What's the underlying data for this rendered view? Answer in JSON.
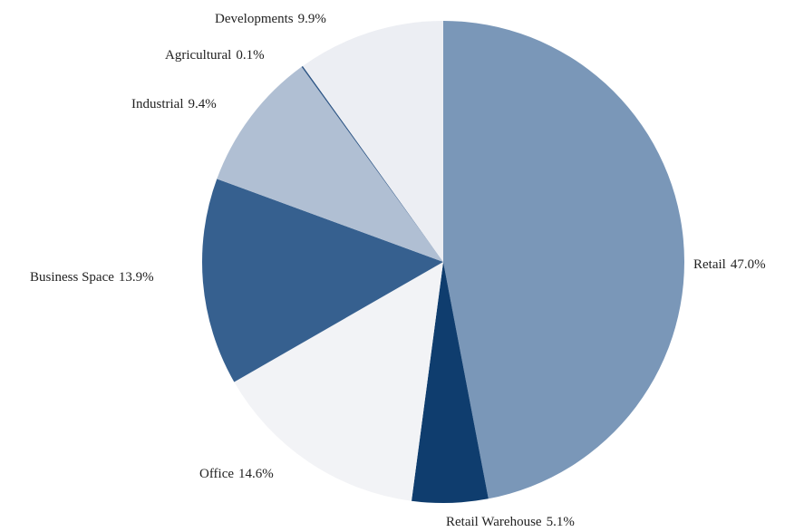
{
  "chart_data": {
    "type": "pie",
    "categories": [
      "Retail",
      "Retail Warehouse",
      "Office",
      "Business Space",
      "Industrial",
      "Agricultural",
      "Developments"
    ],
    "values": [
      47,
      5.1,
      14.6,
      13.9,
      9.4,
      0.1,
      9.9
    ],
    "value_labels": [
      "47.0%",
      "5.1%",
      "14.6%",
      "13.9%",
      "9.4%",
      "0.1%",
      "9.9%"
    ],
    "colors": [
      "#7a97b8",
      "#0f3d6e",
      "#f2f3f6",
      "#36608f",
      "#b0bfd3",
      "#2d5585",
      "#eceef3"
    ]
  }
}
